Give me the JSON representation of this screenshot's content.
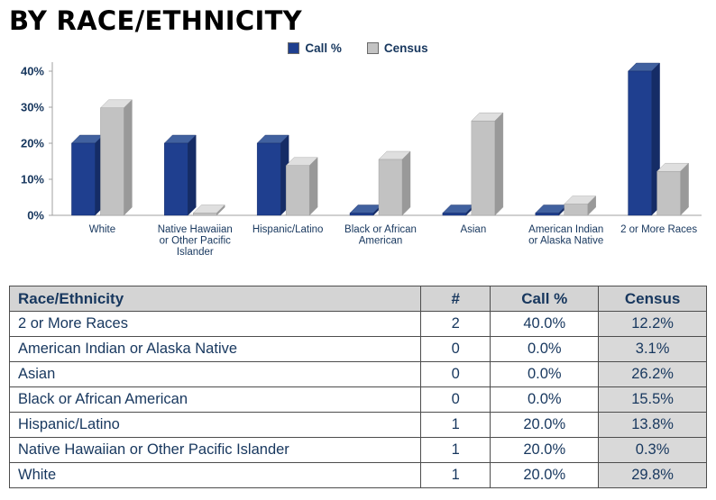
{
  "page": {
    "title": "BY RACE/ETHNICITY"
  },
  "legend": {
    "items": [
      {
        "label": "Call %",
        "color": "#1F3F8F"
      },
      {
        "label": "Census",
        "color": "#C3C3C3"
      }
    ]
  },
  "colors": {
    "text_navy": "#17375E",
    "call_front": "#1F3F8F",
    "call_top": "#41619F",
    "call_side": "#152C66",
    "census_front": "#C2C2C2",
    "census_top": "#DFDFDF",
    "census_side": "#999999",
    "axis": "#A0A0A0",
    "table_header_bg": "#D4D4D4",
    "census_col_bg": "#D9D9D9"
  },
  "chart_data": {
    "type": "bar",
    "style": "3d-column",
    "title": "BY RACE/ETHNICITY",
    "xlabel": "",
    "ylabel": "",
    "categories": [
      "White",
      "Native Hawaiian or Other Pacific Islander",
      "Hispanic/Latino",
      "Black or African American",
      "Asian",
      "American Indian or Alaska Native",
      "2 or More Races"
    ],
    "category_label_lines": [
      [
        "White"
      ],
      [
        "Native Hawaiian",
        "or Other Pacific",
        "Islander"
      ],
      [
        "Hispanic/Latino"
      ],
      [
        "Black or African",
        "American"
      ],
      [
        "Asian"
      ],
      [
        "American Indian",
        "or Alaska Native"
      ],
      [
        "2 or More Races"
      ]
    ],
    "series": [
      {
        "name": "Call %",
        "values": [
          20.0,
          20.0,
          20.0,
          0.0,
          0.0,
          0.0,
          40.0
        ]
      },
      {
        "name": "Census",
        "values": [
          29.8,
          0.3,
          13.8,
          15.5,
          26.2,
          3.1,
          12.2
        ]
      }
    ],
    "y_ticks": [
      0,
      10,
      20,
      30,
      40
    ],
    "y_tick_labels": [
      "0%",
      "10%",
      "20%",
      "30%",
      "40%"
    ],
    "ylim": [
      0,
      40
    ],
    "grid": false,
    "legend_position": "top"
  },
  "table": {
    "headers": [
      "Race/Ethnicity",
      "#",
      "Call %",
      "Census"
    ],
    "rows": [
      {
        "race": "2 or More Races",
        "count": "2",
        "call": "40.0%",
        "census": "12.2%"
      },
      {
        "race": "American Indian or Alaska Native",
        "count": "0",
        "call": "0.0%",
        "census": "3.1%"
      },
      {
        "race": "Asian",
        "count": "0",
        "call": "0.0%",
        "census": "26.2%"
      },
      {
        "race": "Black or African American",
        "count": "0",
        "call": "0.0%",
        "census": "15.5%"
      },
      {
        "race": "Hispanic/Latino",
        "count": "1",
        "call": "20.0%",
        "census": "13.8%"
      },
      {
        "race": "Native Hawaiian or Other Pacific Islander",
        "count": "1",
        "call": "20.0%",
        "census": "0.3%"
      },
      {
        "race": "White",
        "count": "1",
        "call": "20.0%",
        "census": "29.8%"
      }
    ]
  }
}
